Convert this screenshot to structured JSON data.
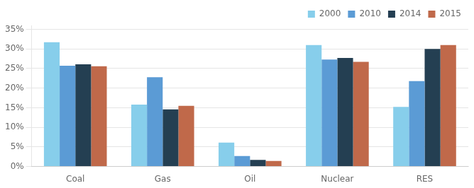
{
  "chart_data": {
    "type": "bar",
    "categories": [
      "Coal",
      "Gas",
      "Oil",
      "Nuclear",
      "RES"
    ],
    "series": [
      {
        "name": "2000",
        "color": "#87CEEB",
        "values": [
          0.317,
          0.158,
          0.061,
          0.31,
          0.152
        ]
      },
      {
        "name": "2010",
        "color": "#5B9BD5",
        "values": [
          0.257,
          0.228,
          0.027,
          0.273,
          0.218
        ]
      },
      {
        "name": "2014",
        "color": "#243F52",
        "values": [
          0.261,
          0.146,
          0.017,
          0.277,
          0.3
        ]
      },
      {
        "name": "2015",
        "color": "#C0694A",
        "values": [
          0.256,
          0.155,
          0.014,
          0.267,
          0.31
        ]
      }
    ],
    "ylim": [
      0,
      0.36
    ],
    "yticks": [
      {
        "value": 0.0,
        "label": "0%"
      },
      {
        "value": 0.05,
        "label": "5%"
      },
      {
        "value": 0.1,
        "label": "10%"
      },
      {
        "value": 0.15,
        "label": "15%"
      },
      {
        "value": 0.2,
        "label": "20%"
      },
      {
        "value": 0.25,
        "label": "25%"
      },
      {
        "value": 0.3,
        "label": "30%"
      },
      {
        "value": 0.35,
        "label": "35%"
      }
    ],
    "grid": true,
    "legend": "upper right"
  }
}
